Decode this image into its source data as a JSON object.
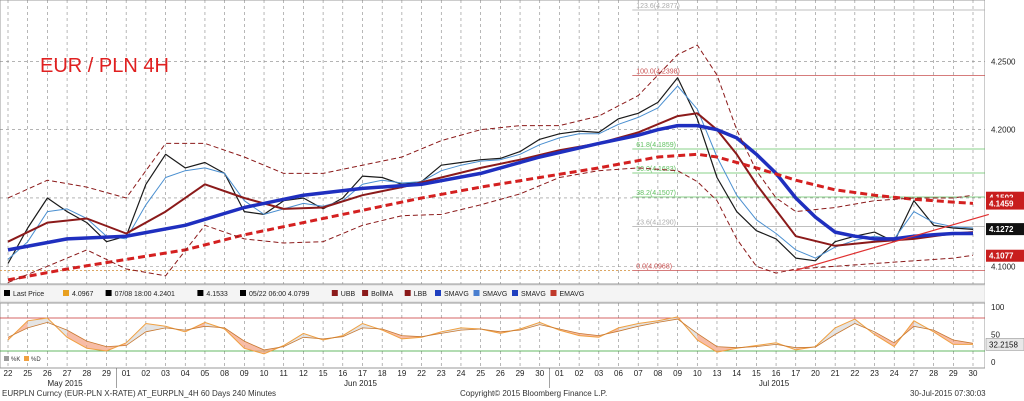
{
  "chart_title": "EUR / PLN 4H",
  "footer": {
    "left": "EURPLN Curncy (EUR-PLN X-RATE) AT_EURPLN_4H 60 Days 240 Minutes",
    "center": "Copyright© 2015 Bloomberg Finance L.P.",
    "right": "30-Jul-2015 07:30:03"
  },
  "legend": [
    {
      "label": "Last Price",
      "color": "#000000"
    },
    {
      "label": "4.0967",
      "color": "#e8a020"
    },
    {
      "label": "07/08 18:00 4.2401",
      "color": "#000000"
    },
    {
      "label": "4.1533",
      "color": "#000000"
    },
    {
      "label": "05/22 06:00 4.0799",
      "color": "#000000"
    },
    {
      "label": "UBB",
      "color": "#8b1a1a"
    },
    {
      "label": "BollMA",
      "color": "#8b1a1a"
    },
    {
      "label": "LBB",
      "color": "#8b1a1a"
    },
    {
      "label": "SMAVG",
      "color": "#1f3fbf"
    },
    {
      "label": "SMAVG",
      "color": "#4a7fd0"
    },
    {
      "label": "SMAVG",
      "color": "#1f3fbf"
    },
    {
      "label": "EMAVG",
      "color": "#c0392b"
    }
  ],
  "oscillator_legend": [
    "%K",
    "%D"
  ],
  "colors": {
    "price": "#1a1a1a",
    "sma_fast": "#4a8fd0",
    "sma_mid": "#8b1a1a",
    "sma_slow": "#1f2fbf",
    "ema": "#d42020",
    "boll": "#8b1a1a",
    "fib": "#c85050",
    "fib_green": "#60c060",
    "trendline": "#e03030",
    "stoch_k": "#f0a040",
    "stoch_fill": "#f4a080",
    "stoch_line": "#c87830",
    "grid": "#888888"
  },
  "chart_data": [
    {
      "type": "line",
      "panel": "price",
      "title": "EUR / PLN 4H",
      "ylim": [
        4.087,
        4.295
      ],
      "yticks": [
        4.1,
        4.15,
        4.2,
        4.25
      ],
      "ytick_labels": [
        "4.1000",
        "4.1500",
        "4.2000",
        "4.2500"
      ],
      "price_tags": [
        {
          "value": 4.1502,
          "label": "4.1502",
          "color": "#c81e1e"
        },
        {
          "value": 4.1459,
          "label": "4.1459",
          "color": "#c81e1e"
        },
        {
          "value": 4.1272,
          "label": "4.1272",
          "color": "#111111"
        },
        {
          "value": 4.1077,
          "label": "4.1077",
          "color": "#c81e1e"
        }
      ],
      "fib_levels": [
        {
          "value": 4.2877,
          "label": "123.6(4.2877)",
          "color": "#aaaaaa"
        },
        {
          "value": 4.2398,
          "label": "100.0(4.2398)",
          "color": "#c85050"
        },
        {
          "value": 4.1859,
          "label": "61.8(4.1859)",
          "color": "#60c060"
        },
        {
          "value": 4.1683,
          "label": "50.0(4.1683)",
          "color": "#60c060"
        },
        {
          "value": 4.1507,
          "label": "38.2(4.1507)",
          "color": "#60c060"
        },
        {
          "value": 4.129,
          "label": "23.6(4.1290)",
          "color": "#aaaaaa"
        },
        {
          "value": 4.0968,
          "label": "0.0(4.0968)",
          "color": "#c85050"
        }
      ],
      "x_ticks": [
        "22",
        "25",
        "26",
        "27",
        "28",
        "29",
        "01",
        "02",
        "03",
        "04",
        "05",
        "08",
        "09",
        "10",
        "11",
        "12",
        "15",
        "16",
        "17",
        "18",
        "19",
        "22",
        "23",
        "24",
        "25",
        "26",
        "29",
        "30",
        "01",
        "02",
        "03",
        "06",
        "07",
        "08",
        "09",
        "10",
        "13",
        "14",
        "15",
        "16",
        "17",
        "20",
        "21",
        "22",
        "23",
        "24",
        "27",
        "28",
        "29",
        "30"
      ],
      "month_labels": [
        {
          "after_index": 3,
          "label": "May 2015"
        },
        {
          "after_index": 18,
          "label": "Jun 2015"
        },
        {
          "after_index": 39,
          "label": "Jul 2015"
        }
      ],
      "series": [
        {
          "name": "Last Price",
          "x": [
            0,
            1,
            2,
            3,
            4,
            5,
            6,
            7,
            8,
            9,
            10,
            11,
            12,
            13,
            14,
            15,
            16,
            17,
            18,
            19,
            20,
            21,
            22,
            23,
            24,
            25,
            26,
            27,
            28,
            29,
            30,
            31,
            32,
            33,
            34,
            35,
            36,
            37,
            38,
            39,
            40,
            41,
            42,
            43,
            44,
            45,
            46,
            47,
            48,
            49
          ],
          "values": [
            4.102,
            4.128,
            4.15,
            4.14,
            4.132,
            4.118,
            4.122,
            4.16,
            4.182,
            4.172,
            4.176,
            4.168,
            4.14,
            4.138,
            4.148,
            4.15,
            4.142,
            4.15,
            4.166,
            4.165,
            4.16,
            4.162,
            4.174,
            4.176,
            4.178,
            4.179,
            4.184,
            4.193,
            4.197,
            4.199,
            4.198,
            4.208,
            4.212,
            4.22,
            4.238,
            4.208,
            4.165,
            4.14,
            4.126,
            4.12,
            4.106,
            4.104,
            4.118,
            4.122,
            4.125,
            4.118,
            4.148,
            4.13,
            4.128,
            4.127
          ]
        },
        {
          "name": "SMAVG",
          "x": [
            0,
            1,
            2,
            3,
            4,
            5,
            6,
            7,
            8,
            9,
            10,
            11,
            12,
            13,
            14,
            15,
            16,
            17,
            18,
            19,
            20,
            21,
            22,
            23,
            24,
            25,
            26,
            27,
            28,
            29,
            30,
            31,
            32,
            33,
            34,
            35,
            36,
            37,
            38,
            39,
            40,
            41,
            42,
            43,
            44,
            45,
            46,
            47,
            48,
            49
          ],
          "values": [
            4.105,
            4.118,
            4.14,
            4.142,
            4.135,
            4.122,
            4.12,
            4.145,
            4.165,
            4.17,
            4.172,
            4.168,
            4.148,
            4.138,
            4.142,
            4.146,
            4.144,
            4.148,
            4.16,
            4.163,
            4.161,
            4.162,
            4.17,
            4.174,
            4.177,
            4.178,
            4.182,
            4.189,
            4.194,
            4.197,
            4.197,
            4.204,
            4.209,
            4.216,
            4.232,
            4.215,
            4.18,
            4.152,
            4.134,
            4.124,
            4.112,
            4.106,
            4.114,
            4.119,
            4.122,
            4.12,
            4.14,
            4.132,
            4.129,
            4.128
          ]
        },
        {
          "name": "BollMA",
          "x": [
            0,
            2,
            4,
            6,
            8,
            10,
            12,
            14,
            16,
            18,
            20,
            22,
            24,
            26,
            28,
            30,
            32,
            34,
            35,
            36,
            37,
            38,
            40,
            42,
            44,
            46,
            48,
            49
          ],
          "values": [
            4.118,
            4.132,
            4.135,
            4.124,
            4.14,
            4.16,
            4.15,
            4.142,
            4.143,
            4.152,
            4.158,
            4.165,
            4.172,
            4.178,
            4.185,
            4.19,
            4.198,
            4.21,
            4.212,
            4.2,
            4.182,
            4.16,
            4.122,
            4.115,
            4.118,
            4.12,
            4.124,
            4.125
          ]
        },
        {
          "name": "SMAVG",
          "x": [
            0,
            3,
            6,
            9,
            12,
            15,
            18,
            21,
            24,
            27,
            30,
            32,
            33,
            34,
            35,
            36,
            37,
            38,
            39,
            40,
            41,
            42,
            43,
            44,
            45,
            46,
            47,
            48,
            49
          ],
          "values": [
            4.112,
            4.12,
            4.122,
            4.13,
            4.143,
            4.152,
            4.157,
            4.16,
            4.168,
            4.18,
            4.19,
            4.196,
            4.2,
            4.203,
            4.203,
            4.2,
            4.194,
            4.182,
            4.168,
            4.15,
            4.136,
            4.125,
            4.122,
            4.12,
            4.12,
            4.122,
            4.123,
            4.124,
            4.124
          ]
        },
        {
          "name": "EMAVG",
          "x": [
            0,
            3,
            6,
            9,
            12,
            15,
            18,
            21,
            24,
            27,
            30,
            33,
            35,
            36,
            38,
            40,
            42,
            44,
            46,
            48,
            49
          ],
          "values": [
            4.09,
            4.098,
            4.105,
            4.112,
            4.123,
            4.132,
            4.141,
            4.15,
            4.158,
            4.165,
            4.172,
            4.18,
            4.182,
            4.18,
            4.172,
            4.163,
            4.156,
            4.152,
            4.149,
            4.147,
            4.146
          ]
        },
        {
          "name": "UBB",
          "x": [
            0,
            2,
            4,
            6,
            8,
            10,
            12,
            14,
            16,
            18,
            20,
            22,
            24,
            26,
            28,
            30,
            32,
            33,
            34,
            35,
            36,
            37,
            38,
            39,
            40,
            42,
            44,
            46,
            48,
            49
          ],
          "values": [
            4.15,
            4.163,
            4.158,
            4.15,
            4.19,
            4.19,
            4.18,
            4.168,
            4.168,
            4.174,
            4.18,
            4.192,
            4.2,
            4.203,
            4.203,
            4.21,
            4.225,
            4.24,
            4.255,
            4.262,
            4.24,
            4.2,
            4.17,
            4.15,
            4.14,
            4.143,
            4.148,
            4.15,
            4.15,
            4.152
          ]
        },
        {
          "name": "LBB",
          "x": [
            0,
            2,
            4,
            6,
            8,
            10,
            12,
            14,
            16,
            18,
            20,
            22,
            24,
            26,
            28,
            30,
            32,
            34,
            35,
            36,
            37,
            38,
            39,
            40,
            42,
            44,
            46,
            48,
            49
          ],
          "values": [
            4.088,
            4.1,
            4.112,
            4.098,
            4.093,
            4.13,
            4.12,
            4.117,
            4.118,
            4.13,
            4.137,
            4.138,
            4.145,
            4.153,
            4.165,
            4.17,
            4.172,
            4.17,
            4.162,
            4.148,
            4.12,
            4.1,
            4.095,
            4.098,
            4.1,
            4.102,
            4.104,
            4.106,
            4.108
          ]
        },
        {
          "name": "Trend",
          "x": [
            40,
            49.8
          ],
          "values": [
            4.097,
            4.138
          ]
        }
      ]
    },
    {
      "type": "line",
      "panel": "oscillator",
      "ylim": [
        0,
        100
      ],
      "yticks": [
        0,
        50,
        100
      ],
      "ytick_labels": [
        "0",
        "50",
        "100"
      ],
      "levels": [
        20,
        80
      ],
      "last_value_label": "32.2158",
      "series": [
        {
          "name": "%K",
          "x": [
            0,
            1,
            2,
            3,
            4,
            5,
            6,
            7,
            8,
            9,
            10,
            11,
            12,
            13,
            14,
            15,
            16,
            17,
            18,
            19,
            20,
            21,
            22,
            23,
            24,
            25,
            26,
            27,
            28,
            29,
            30,
            31,
            32,
            33,
            34,
            35,
            36,
            37,
            38,
            39,
            40,
            41,
            42,
            43,
            44,
            45,
            46,
            47,
            48,
            49
          ],
          "values": [
            40,
            75,
            80,
            45,
            25,
            20,
            35,
            70,
            65,
            55,
            72,
            60,
            25,
            15,
            30,
            52,
            40,
            48,
            70,
            58,
            42,
            45,
            55,
            62,
            60,
            52,
            60,
            72,
            58,
            48,
            45,
            62,
            70,
            75,
            82,
            40,
            18,
            25,
            30,
            35,
            22,
            28,
            62,
            78,
            50,
            28,
            75,
            55,
            32,
            32
          ]
        },
        {
          "name": "%D",
          "x": [
            0,
            1,
            2,
            3,
            4,
            5,
            6,
            7,
            8,
            9,
            10,
            11,
            12,
            13,
            14,
            15,
            16,
            17,
            18,
            19,
            20,
            21,
            22,
            23,
            24,
            25,
            26,
            27,
            28,
            29,
            30,
            31,
            32,
            33,
            34,
            35,
            36,
            37,
            38,
            39,
            40,
            41,
            42,
            43,
            44,
            45,
            46,
            47,
            48,
            49
          ],
          "values": [
            45,
            62,
            72,
            58,
            38,
            28,
            30,
            55,
            62,
            58,
            65,
            62,
            38,
            22,
            28,
            45,
            42,
            46,
            62,
            60,
            48,
            46,
            52,
            58,
            60,
            55,
            58,
            68,
            60,
            52,
            48,
            56,
            65,
            72,
            78,
            52,
            28,
            26,
            28,
            32,
            26,
            27,
            50,
            70,
            55,
            35,
            65,
            58,
            40,
            34
          ]
        }
      ]
    }
  ]
}
